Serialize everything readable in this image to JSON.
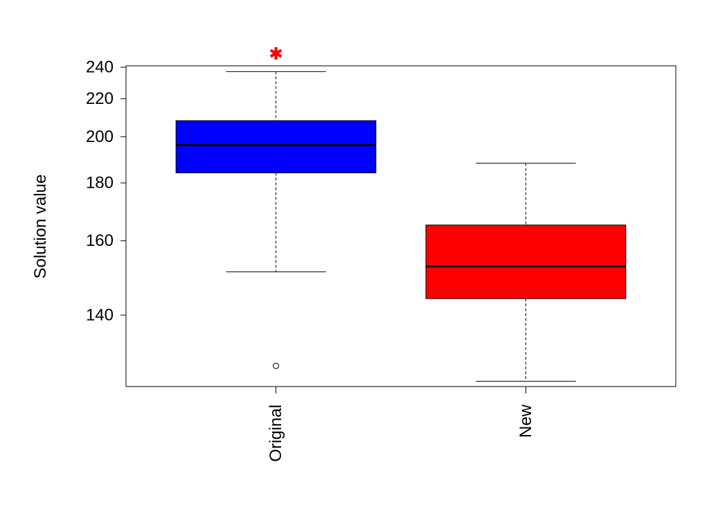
{
  "chart_data": {
    "type": "boxplot",
    "ylabel": "Solution value",
    "y_scale": "reciprocal",
    "yticks": [
      140,
      160,
      180,
      200,
      220,
      240
    ],
    "ylim": [
      125,
      241
    ],
    "grid": false,
    "legend": "none",
    "categories": [
      "Original",
      "New"
    ],
    "boxes": [
      {
        "category": "Original",
        "fill": "#0000ff",
        "whisker_low": 151,
        "q1": 184,
        "median": 196,
        "q3": 208,
        "whisker_high": 237,
        "outliers": [
          129
        ]
      },
      {
        "category": "New",
        "fill": "#ff0000",
        "whisker_low": 126,
        "q1": 144,
        "median": 152.5,
        "q3": 165,
        "whisker_high": 188,
        "outliers": []
      }
    ],
    "markers": [
      {
        "category": "Original",
        "symbol": "asterisk",
        "color": "#ff0000",
        "y": 250
      }
    ]
  }
}
